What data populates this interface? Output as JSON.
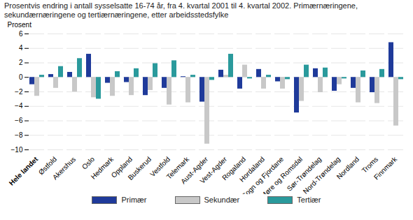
{
  "chart_data": {
    "type": "bar",
    "title": "Prosentvis endring i antall sysselsatte 16-74 år, fra 4. kvartal 2001 til 4. kvartal 2002. Primærnæringene, sekundærnæringene og tertiærnæringene, etter arbeidsstedsfylke",
    "y_label": "Prosent",
    "categories": [
      "Hele landet",
      "Østfold",
      "Akershus",
      "Oslo",
      "Hedmark",
      "Oppland",
      "Buskerud",
      "Vestfold",
      "Telemark",
      "Aust-Agder",
      "Vest-Agder",
      "Rogaland",
      "Hordaland",
      "Sogn og Fjordane",
      "Møre og Romsdal",
      "Sør-Trøndelag",
      "Nord-Trøndelag",
      "Nordland",
      "Troms",
      "Finnmark"
    ],
    "series": [
      {
        "name": "Primær",
        "color": "#1f3a9a",
        "values": [
          -1.0,
          0.4,
          0.7,
          3.2,
          -0.8,
          -0.7,
          -2.5,
          -1.5,
          0.1,
          -3.4,
          1.0,
          -1.6,
          1.1,
          -0.6,
          -4.9,
          1.2,
          -1.9,
          -1.5,
          -2.1,
          4.8
        ]
      },
      {
        "name": "Sekundær",
        "color": "#c8c8c8",
        "values": [
          -2.6,
          -1.5,
          -2.0,
          -2.8,
          -2.6,
          -2.5,
          -1.8,
          -3.8,
          -3.5,
          -9.2,
          0.3,
          1.7,
          -1.6,
          -1.6,
          -3.3,
          -2.1,
          -1.0,
          -3.5,
          -3.6,
          -6.7
        ]
      },
      {
        "name": "Tertiær",
        "color": "#2a9a9c",
        "values": [
          0.3,
          1.5,
          2.6,
          -3.0,
          0.8,
          1.2,
          1.9,
          2.3,
          0.3,
          -0.4,
          3.2,
          -0.2,
          0.3,
          -0.3,
          1.7,
          1.3,
          -0.2,
          0.9,
          1.1,
          -0.3
        ]
      }
    ],
    "ylim": [
      -10,
      6
    ],
    "yticks": [
      -10,
      -8,
      -6,
      -4,
      -2,
      0,
      2,
      4,
      6
    ],
    "grid": true,
    "legend": "bottom"
  }
}
